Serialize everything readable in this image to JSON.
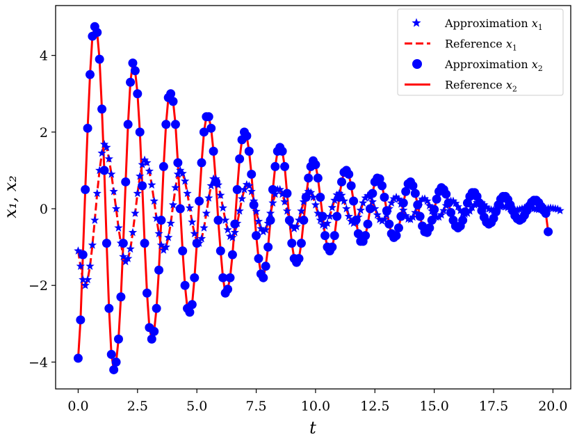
{
  "chart_data": {
    "type": "line",
    "xlabel": "t",
    "ylabel": "x₁, x₂",
    "xlim": [
      -0.95,
      20.75
    ],
    "ylim": [
      -4.7,
      5.3
    ],
    "xticks": [
      0,
      2.5,
      5,
      7.5,
      10,
      12.5,
      15,
      17.5,
      20
    ],
    "xtick_labels": [
      "0.0",
      "2.5",
      "5.0",
      "7.5",
      "10.0",
      "12.5",
      "15.0",
      "17.5",
      "20.0"
    ],
    "yticks": [
      -4,
      -2,
      0,
      2,
      4
    ],
    "ytick_labels": [
      "−4",
      "−2",
      "0",
      "2",
      "4"
    ],
    "legend_position": "top-right",
    "grid": false,
    "series": [
      {
        "name": "Approximation x₁",
        "kind": "scatter",
        "marker": "star",
        "color": "#0000ff",
        "sample_step": 0.1,
        "values": [
          -1.1,
          -1.5,
          -1.85,
          -2.0,
          -1.85,
          -1.5,
          -0.95,
          -0.3,
          0.4,
          1.0,
          1.45,
          1.68,
          1.6,
          1.3,
          0.9,
          0.45,
          0.0,
          -0.5,
          -0.9,
          -1.25,
          -1.38,
          -1.3,
          -1.05,
          -0.62,
          -0.12,
          0.4,
          0.85,
          1.15,
          1.27,
          1.2,
          0.98,
          0.62,
          0.2,
          -0.25,
          -0.65,
          -0.95,
          -1.08,
          -1.0,
          -0.75,
          -0.38,
          0.1,
          0.55,
          0.9,
          1.0,
          0.92,
          0.72,
          0.4,
          0.02,
          -0.35,
          -0.65,
          -0.85,
          -0.9,
          -0.78,
          -0.5,
          -0.12,
          0.28,
          0.6,
          0.78,
          0.78,
          0.62,
          0.35,
          0.02,
          -0.3,
          -0.55,
          -0.72,
          -0.75,
          -0.62,
          -0.38,
          -0.06,
          0.26,
          0.5,
          0.63,
          0.6,
          0.45,
          0.2,
          -0.07,
          -0.33,
          -0.52,
          -0.6,
          -0.55,
          -0.38,
          -0.12,
          0.15,
          0.38,
          0.5,
          0.5,
          0.38,
          0.18,
          -0.06,
          -0.28,
          -0.45,
          -0.52,
          -0.47,
          -0.3,
          -0.06,
          0.18,
          0.36,
          0.45,
          0.42,
          0.3,
          0.1,
          -0.12,
          -0.3,
          -0.42,
          -0.45,
          -0.38,
          -0.2,
          0.03,
          0.22,
          0.36,
          0.4,
          0.35,
          0.2,
          0.0,
          -0.2,
          -0.33,
          -0.38,
          -0.35,
          -0.22,
          -0.04,
          0.15,
          0.28,
          0.34,
          0.3,
          0.18,
          0.0,
          -0.16,
          -0.28,
          -0.32,
          -0.28,
          -0.16,
          0.0,
          0.15,
          0.26,
          0.3,
          0.25,
          0.12,
          -0.04,
          -0.18,
          -0.27,
          -0.28,
          -0.22,
          -0.1,
          0.06,
          0.18,
          0.25,
          0.26,
          0.2,
          0.08,
          -0.06,
          -0.16,
          -0.22,
          -0.22,
          -0.16,
          -0.05,
          0.08,
          0.16,
          0.2,
          0.2,
          0.14,
          0.05,
          -0.05,
          -0.12,
          -0.14,
          -0.12,
          -0.06,
          0.03,
          0.1,
          0.16,
          0.18,
          0.15,
          0.1,
          0.04,
          -0.01,
          -0.03,
          -0.04,
          -0.01,
          0.02,
          0.05,
          0.06,
          0.05,
          0.03,
          0.0,
          -0.02,
          -0.03,
          -0.03,
          -0.02,
          0.0,
          0.02,
          0.03,
          0.03,
          0.02,
          0.0,
          -0.01,
          -0.02,
          -0.02,
          -0.01,
          0.0,
          0.01,
          0.02,
          0.01,
          0.0,
          -0.01,
          -0.05
        ]
      },
      {
        "name": "Reference x₁",
        "kind": "line",
        "style": "dashed",
        "color": "#ff0000",
        "same_as": "Approximation x₁"
      },
      {
        "name": "Approximation x₂",
        "kind": "scatter",
        "marker": "circle",
        "color": "#0000ff",
        "sample_step": 0.1,
        "values": [
          -3.9,
          -2.9,
          -1.2,
          0.5,
          2.1,
          3.5,
          4.5,
          4.75,
          4.6,
          3.9,
          2.6,
          1.0,
          -0.9,
          -2.6,
          -3.8,
          -4.2,
          -4.0,
          -3.4,
          -2.3,
          -0.9,
          0.7,
          2.2,
          3.3,
          3.8,
          3.6,
          3.0,
          2.0,
          0.6,
          -0.9,
          -2.2,
          -3.1,
          -3.4,
          -3.2,
          -2.6,
          -1.6,
          -0.3,
          1.1,
          2.2,
          2.9,
          3.0,
          2.8,
          2.2,
          1.2,
          0.0,
          -1.1,
          -2.0,
          -2.6,
          -2.7,
          -2.5,
          -1.8,
          -0.9,
          0.2,
          1.2,
          2.0,
          2.4,
          2.4,
          2.1,
          1.5,
          0.7,
          -0.3,
          -1.1,
          -1.8,
          -2.2,
          -2.1,
          -1.8,
          -1.2,
          -0.4,
          0.5,
          1.3,
          1.8,
          2.0,
          1.9,
          1.5,
          0.9,
          0.1,
          -0.7,
          -1.3,
          -1.7,
          -1.8,
          -1.5,
          -1.0,
          -0.3,
          0.5,
          1.1,
          1.5,
          1.6,
          1.5,
          1.1,
          0.4,
          -0.3,
          -0.9,
          -1.3,
          -1.4,
          -1.3,
          -0.9,
          -0.3,
          0.3,
          0.8,
          1.1,
          1.25,
          1.15,
          0.8,
          0.3,
          -0.2,
          -0.7,
          -1.0,
          -1.1,
          -1.0,
          -0.7,
          -0.2,
          0.3,
          0.7,
          0.95,
          1.0,
          0.9,
          0.6,
          0.2,
          -0.3,
          -0.65,
          -0.85,
          -0.85,
          -0.7,
          -0.4,
          0.0,
          0.4,
          0.7,
          0.8,
          0.78,
          0.6,
          0.3,
          -0.05,
          -0.4,
          -0.65,
          -0.75,
          -0.7,
          -0.5,
          -0.2,
          0.15,
          0.45,
          0.65,
          0.7,
          0.6,
          0.4,
          0.1,
          -0.2,
          -0.45,
          -0.6,
          -0.62,
          -0.5,
          -0.3,
          -0.02,
          0.25,
          0.45,
          0.55,
          0.5,
          0.38,
          0.15,
          -0.1,
          -0.3,
          -0.45,
          -0.5,
          -0.45,
          -0.3,
          -0.08,
          0.15,
          0.32,
          0.42,
          0.42,
          0.32,
          0.15,
          -0.05,
          -0.22,
          -0.35,
          -0.4,
          -0.36,
          -0.25,
          -0.08,
          0.1,
          0.25,
          0.32,
          0.32,
          0.24,
          0.1,
          -0.05,
          -0.18,
          -0.26,
          -0.3,
          -0.26,
          -0.17,
          -0.05,
          0.07,
          0.17,
          0.22,
          0.22,
          0.16,
          0.06,
          -0.04,
          -0.12,
          -0.6
        ]
      },
      {
        "name": "Reference x₂",
        "kind": "line",
        "style": "solid",
        "color": "#ff0000",
        "same_as": "Approximation x₂"
      }
    ]
  },
  "legend": [
    {
      "label": "Approximation",
      "sub": "1",
      "marker": "star"
    },
    {
      "label": "Reference",
      "sub": "1",
      "marker": "dashed"
    },
    {
      "label": "Approximation",
      "sub": "2",
      "marker": "circle"
    },
    {
      "label": "Reference",
      "sub": "2",
      "marker": "solid"
    }
  ],
  "colors": {
    "approximation": "#0000ff",
    "reference": "#ff0000",
    "axes": "#000000"
  }
}
